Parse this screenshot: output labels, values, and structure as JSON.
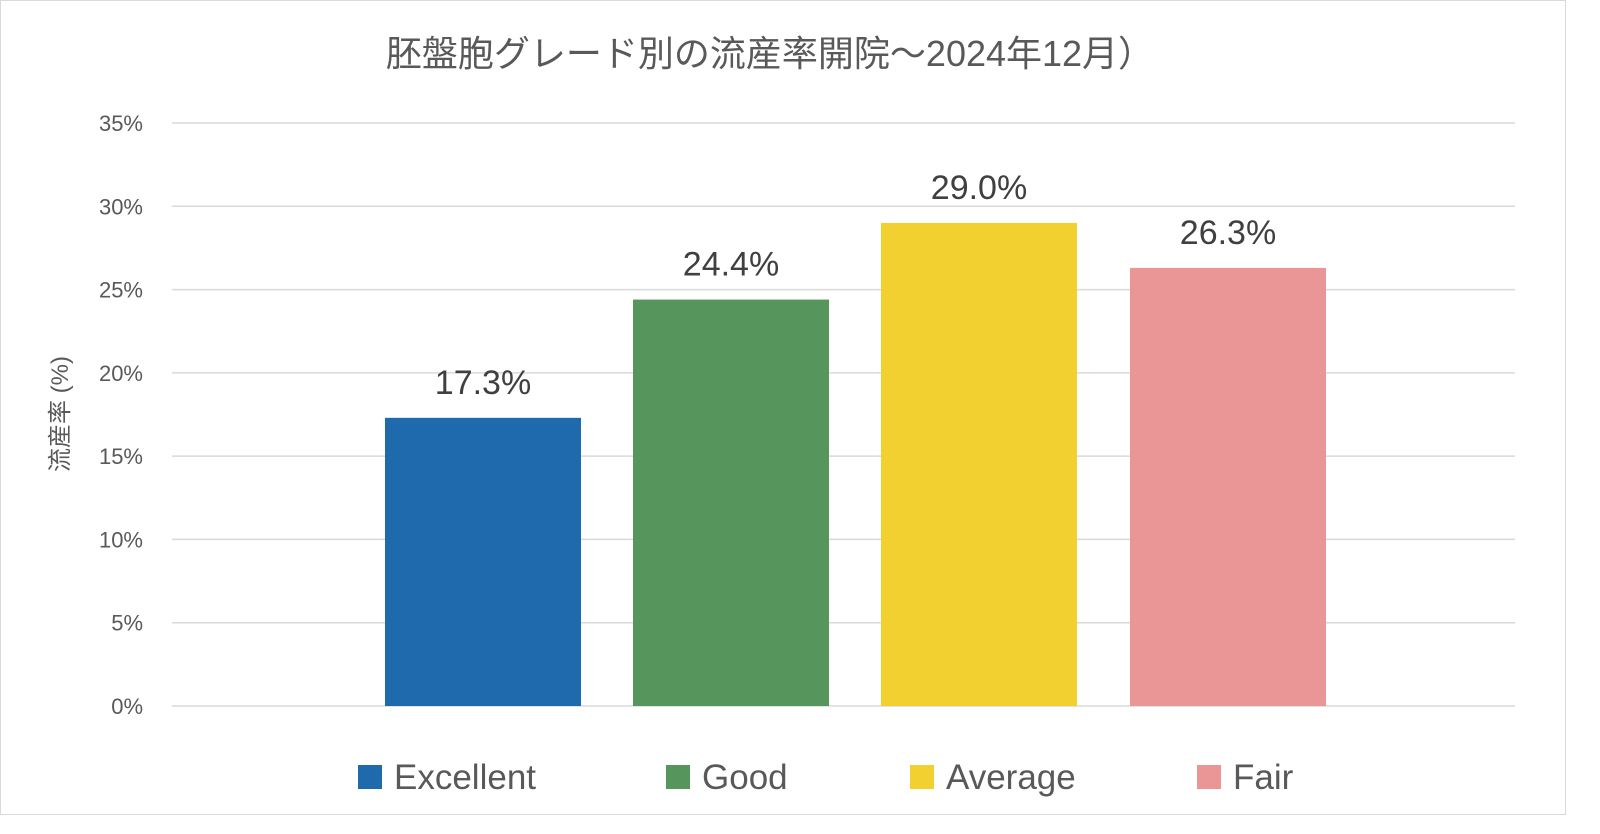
{
  "chart_data": {
    "type": "bar",
    "title": "胚盤胞グレード別の流産率開院～2024年12月）",
    "xlabel": "",
    "ylabel": "流産率 (%)",
    "ylim": [
      0,
      35
    ],
    "yticks": [
      0,
      5,
      10,
      15,
      20,
      25,
      30,
      35
    ],
    "ytick_labels": [
      "0%",
      "5%",
      "10%",
      "15%",
      "20%",
      "25%",
      "30%",
      "35%"
    ],
    "grid": true,
    "legend_position": "bottom",
    "series": [
      {
        "name": "Excellent",
        "value": 17.3,
        "label": "17.3%",
        "color": "#1f6aad"
      },
      {
        "name": "Good",
        "value": 24.4,
        "label": "24.4%",
        "color": "#56965c"
      },
      {
        "name": "Average",
        "value": 29.0,
        "label": "29.0%",
        "color": "#f1d030"
      },
      {
        "name": "Fair",
        "value": 26.3,
        "label": "26.3%",
        "color": "#ea9696"
      }
    ]
  }
}
